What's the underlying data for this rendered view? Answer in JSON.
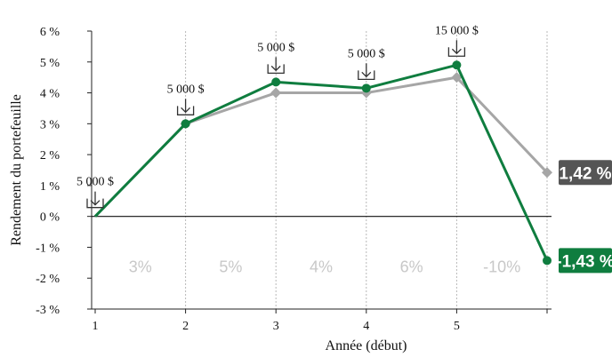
{
  "chart_data": {
    "type": "line",
    "xlabel": "Année (début)",
    "ylabel": "Rendement du portefeuille",
    "x": [
      1,
      2,
      3,
      4,
      5,
      6
    ],
    "x_tick_labels": [
      "1",
      "2",
      "3",
      "4",
      "5"
    ],
    "ylim": [
      -3,
      6
    ],
    "y_ticks": [
      6,
      5,
      4,
      3,
      2,
      1,
      0,
      -1,
      -2,
      -3
    ],
    "y_tick_labels": [
      "6 %",
      "5 %",
      "4 %",
      "3 %",
      "2 %",
      "1 %",
      "0 %",
      "-1 %",
      "-2 %",
      "-3 %"
    ],
    "series": [
      {
        "key": "gray",
        "values": [
          0,
          3.0,
          4.0,
          4.0,
          4.5,
          1.42
        ],
        "color": "#a6a6a6",
        "marker": "diamond"
      },
      {
        "key": "green",
        "values": [
          0,
          3.0,
          4.35,
          4.15,
          4.9,
          -1.43
        ],
        "color": "#0f7d3f",
        "marker": "circle"
      }
    ],
    "end_labels": [
      {
        "text": "1,42 %",
        "value": 1.42,
        "color": "#555555"
      },
      {
        "text": "-1,43 %",
        "value": -1.43,
        "color": "#0f7d3f"
      }
    ],
    "contributions": [
      {
        "x": 1,
        "text": "5 000 $"
      },
      {
        "x": 2,
        "text": "5 000 $"
      },
      {
        "x": 3,
        "text": "5 000 $"
      },
      {
        "x": 4,
        "text": "5 000 $"
      },
      {
        "x": 5,
        "text": "15 000 $"
      }
    ],
    "period_returns": [
      "3%",
      "5%",
      "4%",
      "6%",
      "-10%"
    ],
    "grid": false
  }
}
